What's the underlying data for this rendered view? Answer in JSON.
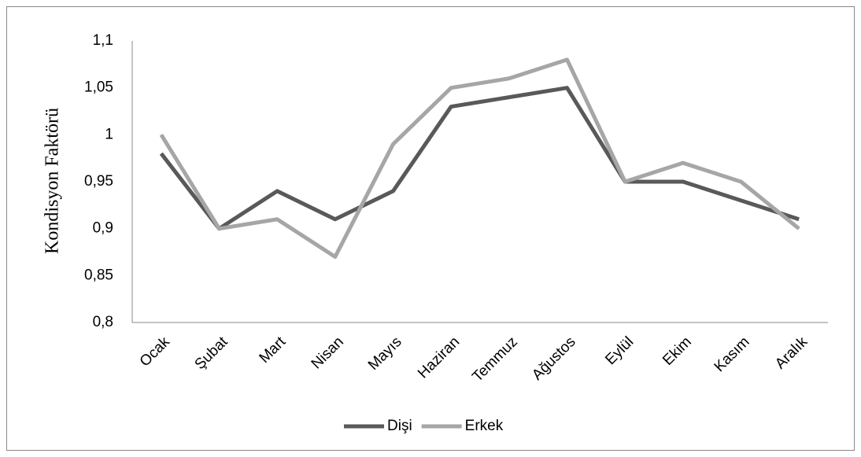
{
  "chart_data": {
    "type": "line",
    "y_label": "Kondisyon Faktörü",
    "categories": [
      "Ocak",
      "Şubat",
      "Mart",
      "Nisan",
      "Mayıs",
      "Haziran",
      "Temmuz",
      "Ağustos",
      "Eylül",
      "Ekim",
      "Kasım",
      "Aralık"
    ],
    "series": [
      {
        "name": "Dişi",
        "color": "#595959",
        "values": [
          0.98,
          0.9,
          0.94,
          0.91,
          0.94,
          1.03,
          1.04,
          1.05,
          0.95,
          0.95,
          0.93,
          0.91
        ]
      },
      {
        "name": "Erkek",
        "color": "#a6a6a6",
        "values": [
          1.0,
          0.9,
          0.91,
          0.87,
          0.99,
          1.05,
          1.06,
          1.08,
          0.95,
          0.97,
          0.95,
          0.9
        ]
      }
    ],
    "ylim": [
      0.8,
      1.1
    ],
    "yticks": [
      {
        "value": 0.8,
        "label": "0,8"
      },
      {
        "value": 0.85,
        "label": "0,85"
      },
      {
        "value": 0.9,
        "label": "0,9"
      },
      {
        "value": 0.95,
        "label": "0,95"
      },
      1,
      {
        "value": 1.05,
        "label": "1,05"
      },
      {
        "value": 1.1,
        "label": "1,1"
      }
    ],
    "grid": false,
    "legend": "bottom"
  }
}
